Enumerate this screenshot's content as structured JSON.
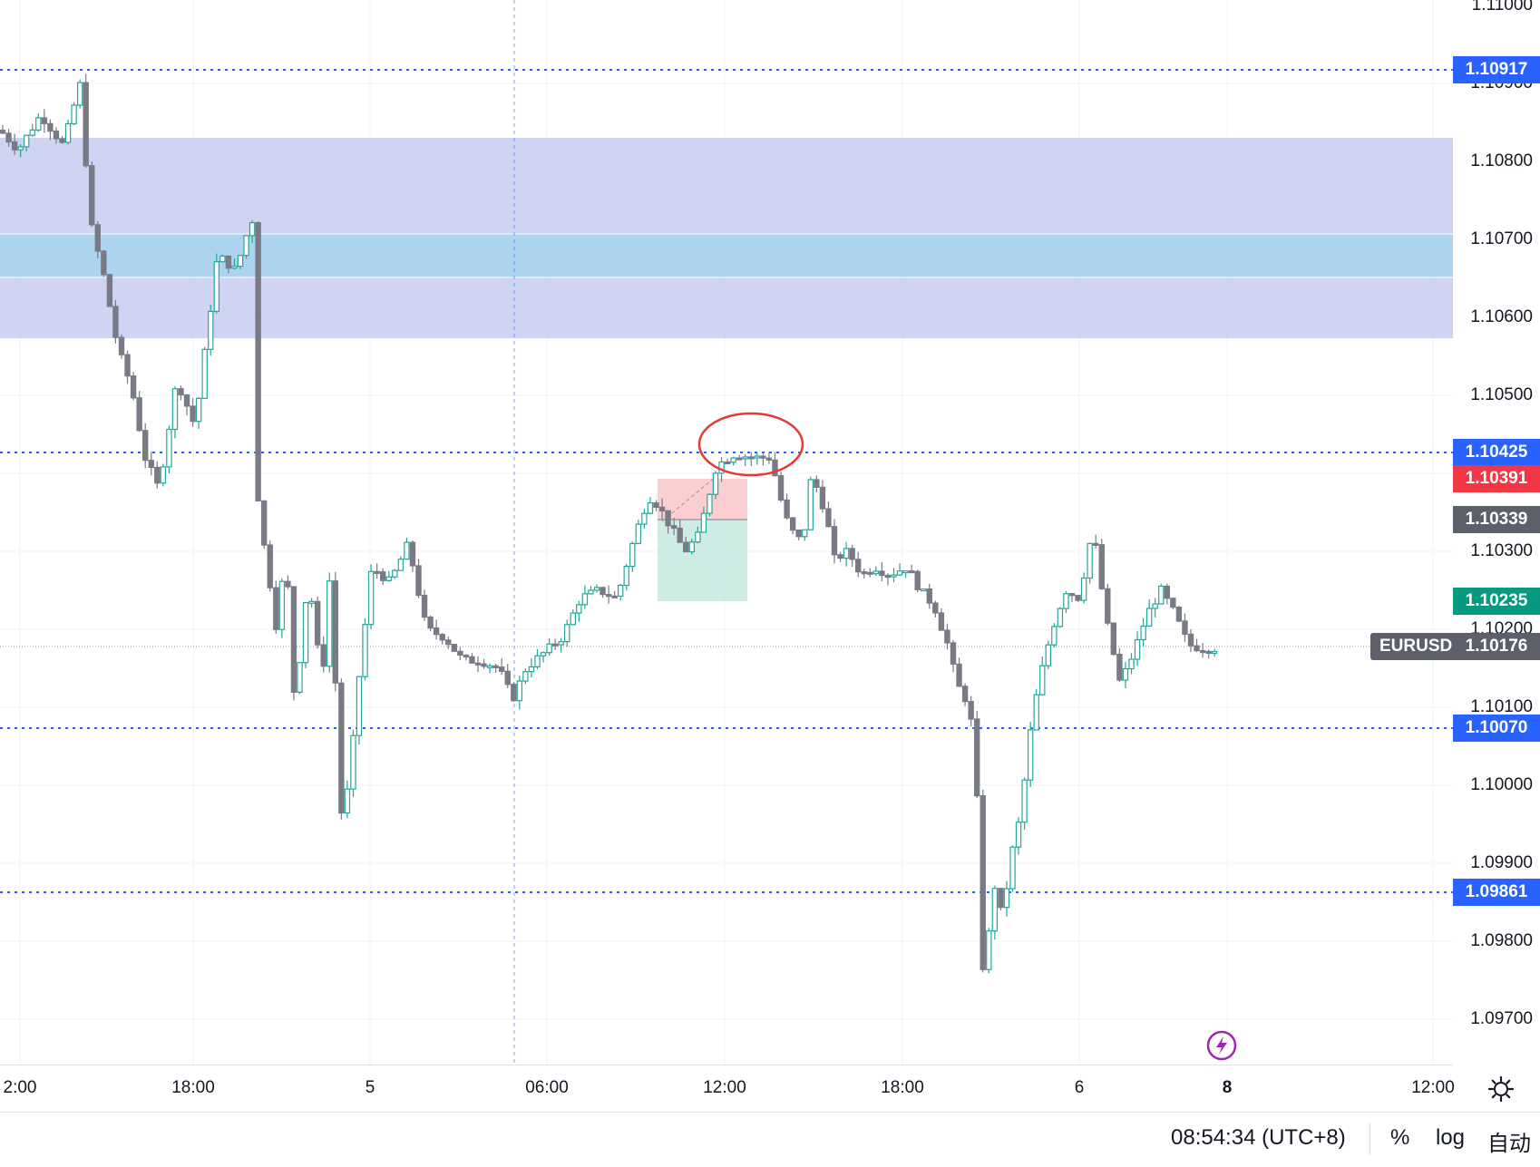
{
  "symbol": "EURUSD",
  "price_axis": {
    "labels": [
      "1.11000",
      "1.10900",
      "1.10800",
      "1.10700",
      "1.10600",
      "1.10500",
      "1.10300",
      "1.10200",
      "1.10100",
      "1.10000",
      "1.09900",
      "1.09800",
      "1.09700"
    ],
    "tags": {
      "hline_top": "1.10917",
      "hline_mid": "1.10425",
      "stop_loss": "1.10391",
      "entry": "1.10339",
      "take_profit": "1.10235",
      "last": "1.10176",
      "hline_low": "1.10070",
      "hline_bottom": "1.09861"
    }
  },
  "time_axis": {
    "labels": [
      "2:00",
      "18:00",
      "5",
      "06:00",
      "12:00",
      "18:00",
      "6",
      "8",
      "12:00"
    ]
  },
  "bottom_bar": {
    "clock": "08:54:34 (UTC+8)",
    "percent": "%",
    "log": "log",
    "auto": "自动"
  },
  "colors": {
    "up": "#26a69a",
    "down": "#787b86",
    "hline": "#2962ff",
    "zone_outer": "#c5cdf0",
    "zone_inner": "#a9d4ee",
    "stop_tag": "#f23645",
    "target_tag": "#089981",
    "entry_tag": "#5d606b",
    "ellipse": "#e53935",
    "bolt": "#9c27b0"
  },
  "icons": [
    "settings-gear-icon",
    "lightning-bolt-icon"
  ]
}
